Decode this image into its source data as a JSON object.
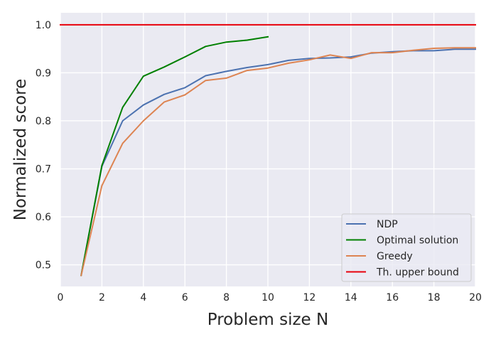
{
  "chart_data": {
    "type": "line",
    "xlabel": "Problem size N",
    "ylabel": "Normalized score",
    "xlim": [
      0,
      20
    ],
    "ylim": [
      0.455,
      1.025
    ],
    "xticks": [
      0,
      2,
      4,
      6,
      8,
      10,
      12,
      14,
      16,
      18,
      20
    ],
    "xtick_labels": [
      "0",
      "2",
      "4",
      "6",
      "8",
      "10",
      "12",
      "14",
      "16",
      "18",
      "20"
    ],
    "yticks": [
      0.5,
      0.6,
      0.7,
      0.8,
      0.9,
      1.0
    ],
    "ytick_labels": [
      "0.5",
      "0.6",
      "0.7",
      "0.8",
      "0.9",
      "1.0"
    ],
    "grid": true,
    "legend_position": "bottom-right",
    "series": [
      {
        "name": "NDP",
        "color": "#4c72b0",
        "x": [
          1,
          2,
          3,
          4,
          5,
          6,
          7,
          8,
          9,
          10,
          11,
          12,
          13,
          14,
          15,
          16,
          17,
          18,
          19,
          20
        ],
        "y": [
          0.478,
          0.705,
          0.8,
          0.833,
          0.855,
          0.869,
          0.894,
          0.903,
          0.911,
          0.917,
          0.926,
          0.93,
          0.931,
          0.933,
          0.941,
          0.944,
          0.946,
          0.946,
          0.949,
          0.949
        ]
      },
      {
        "name": "Optimal solution",
        "color": "#008000",
        "x": [
          1,
          2,
          3,
          4,
          5,
          6,
          7,
          8,
          9,
          10
        ],
        "y": [
          0.478,
          0.707,
          0.828,
          0.893,
          0.912,
          0.933,
          0.955,
          0.964,
          0.968,
          0.975
        ]
      },
      {
        "name": "Greedy",
        "color": "#dd8452",
        "x": [
          1,
          2,
          3,
          4,
          5,
          6,
          7,
          8,
          9,
          10,
          11,
          12,
          13,
          14,
          15,
          16,
          17,
          18,
          19,
          20
        ],
        "y": [
          0.478,
          0.665,
          0.753,
          0.8,
          0.839,
          0.854,
          0.884,
          0.889,
          0.905,
          0.91,
          0.92,
          0.927,
          0.937,
          0.93,
          0.942,
          0.942,
          0.947,
          0.951,
          0.952,
          0.952
        ]
      },
      {
        "name": "Th. upper bound",
        "color": "#e8000b",
        "x": [
          0,
          20
        ],
        "y": [
          1.0,
          1.0
        ]
      }
    ]
  }
}
